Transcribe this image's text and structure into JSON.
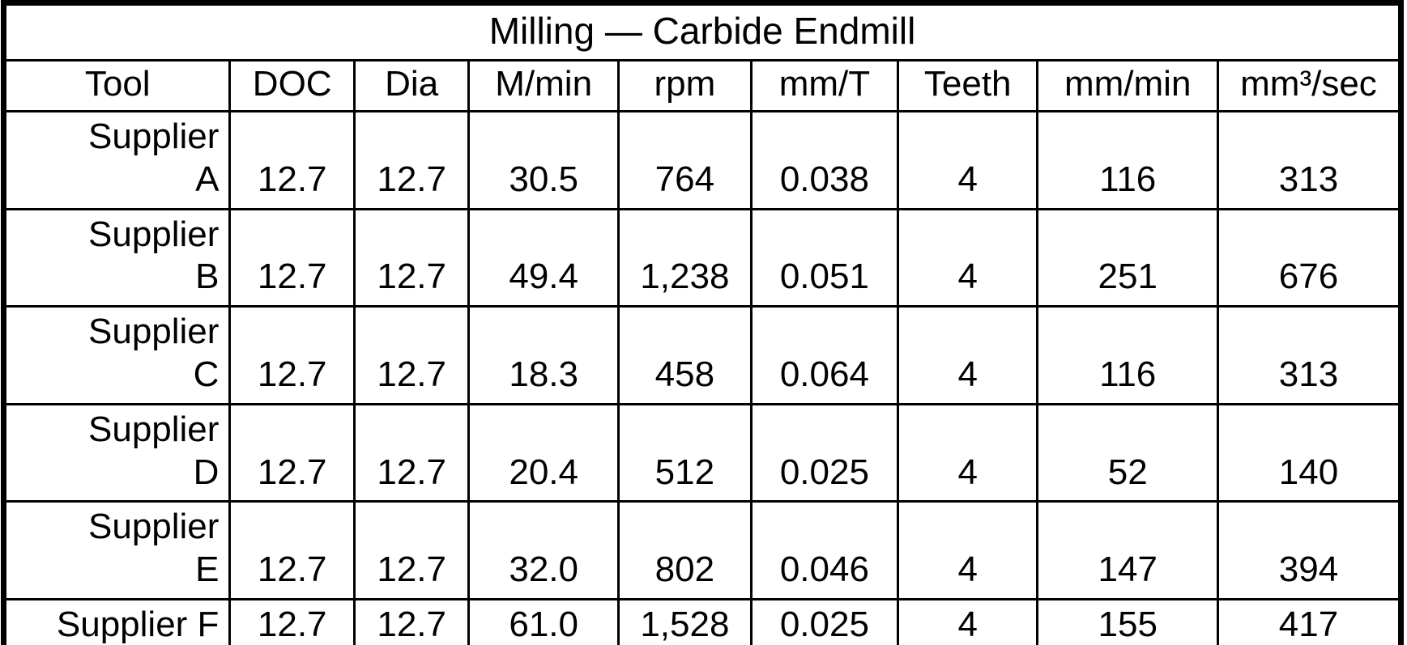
{
  "page": {
    "background_color": "#ffffff",
    "grid_color": "#000000",
    "text_color": "#000000"
  },
  "table": {
    "title": "Milling — Carbide Endmill",
    "columns": [
      "Tool",
      "DOC",
      "Dia",
      "M/min",
      "rpm",
      "mm/T",
      "Teeth",
      "mm/min",
      "mm³/sec"
    ],
    "rows": [
      {
        "tool": "Supplier\nA",
        "values": [
          "12.7",
          "12.7",
          "30.5",
          "764",
          "0.038",
          "4",
          "116",
          "313"
        ]
      },
      {
        "tool": "Supplier\nB",
        "values": [
          "12.7",
          "12.7",
          "49.4",
          "1,238",
          "0.051",
          "4",
          "251",
          "676"
        ]
      },
      {
        "tool": "Supplier\nC",
        "values": [
          "12.7",
          "12.7",
          "18.3",
          "458",
          "0.064",
          "4",
          "116",
          "313"
        ]
      },
      {
        "tool": "Supplier\nD",
        "values": [
          "12.7",
          "12.7",
          "20.4",
          "512",
          "0.025",
          "4",
          "52",
          "140"
        ]
      },
      {
        "tool": "Supplier\nE",
        "values": [
          "12.7",
          "12.7",
          "32.0",
          "802",
          "0.046",
          "4",
          "147",
          "394"
        ]
      },
      {
        "tool": "Supplier F",
        "values": [
          "12.7",
          "12.7",
          "61.0",
          "1,528",
          "0.025",
          "4",
          "155",
          "417"
        ]
      }
    ]
  }
}
